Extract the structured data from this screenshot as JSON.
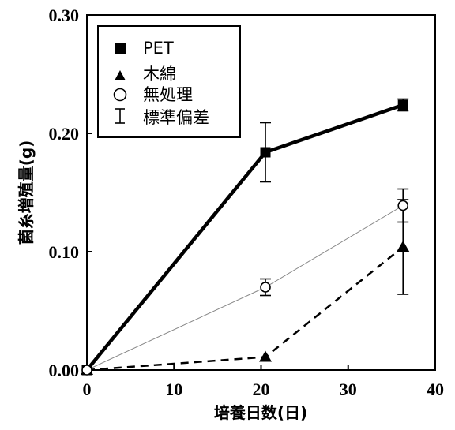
{
  "chart_data": {
    "type": "line",
    "title": "",
    "xlabel": "培養日数(日)",
    "ylabel": "菌糸増殖量(g)",
    "xlim": [
      0,
      40
    ],
    "ylim": [
      0,
      0.3
    ],
    "xticks": [
      0,
      10,
      20,
      30,
      40
    ],
    "yticks": [
      0,
      0.1,
      0.2,
      0.3
    ],
    "xtick_labels": [
      "0",
      "10",
      "20",
      "30",
      "40"
    ],
    "ytick_labels": [
      "0.00",
      "0.10",
      "0.20",
      "0.30"
    ],
    "grid": false,
    "legend_position": "top-left",
    "legend_errorbar_label": "標準偏差",
    "series": [
      {
        "name": "PET",
        "marker": "square",
        "line": "solid-thick",
        "color": "#000000",
        "x": [
          0,
          20.5,
          36.3
        ],
        "y": [
          0.0,
          0.184,
          0.224
        ],
        "err": [
          0.0,
          0.025,
          0.005
        ]
      },
      {
        "name": "木綿",
        "marker": "triangle",
        "line": "dashed",
        "color": "#000000",
        "x": [
          0,
          20.5,
          36.3
        ],
        "y": [
          0.0,
          0.011,
          0.104
        ],
        "err": [
          0.0,
          0.0,
          0.04
        ]
      },
      {
        "name": "無処理",
        "marker": "circle-open",
        "line": "thin-gray",
        "color": "#000000",
        "x": [
          0,
          20.5,
          36.3
        ],
        "y": [
          0.0,
          0.07,
          0.139
        ],
        "err": [
          0.0,
          0.007,
          0.014
        ]
      }
    ]
  }
}
